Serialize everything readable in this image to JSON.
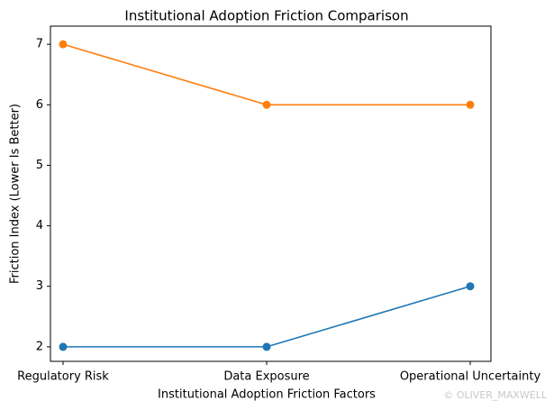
{
  "chart_data": {
    "type": "line",
    "title": "Institutional Adoption Friction Comparison",
    "x_label": "Institutional Adoption Friction Factors",
    "y_label": "Friction Index (Lower Is Better)",
    "categories": [
      "Regulatory Risk",
      "Data Exposure",
      "Operational Uncertainty"
    ],
    "series": [
      {
        "color": "#1f77b4",
        "values": [
          2,
          2,
          3
        ]
      },
      {
        "color": "#ff7f0e",
        "values": [
          7,
          6,
          6
        ]
      }
    ],
    "ylim": [
      1.76,
      7.3
    ],
    "yticks": [
      2,
      3,
      4,
      5,
      6,
      7
    ],
    "grid": false,
    "watermark": "© OLIVER_MAXWELL"
  }
}
